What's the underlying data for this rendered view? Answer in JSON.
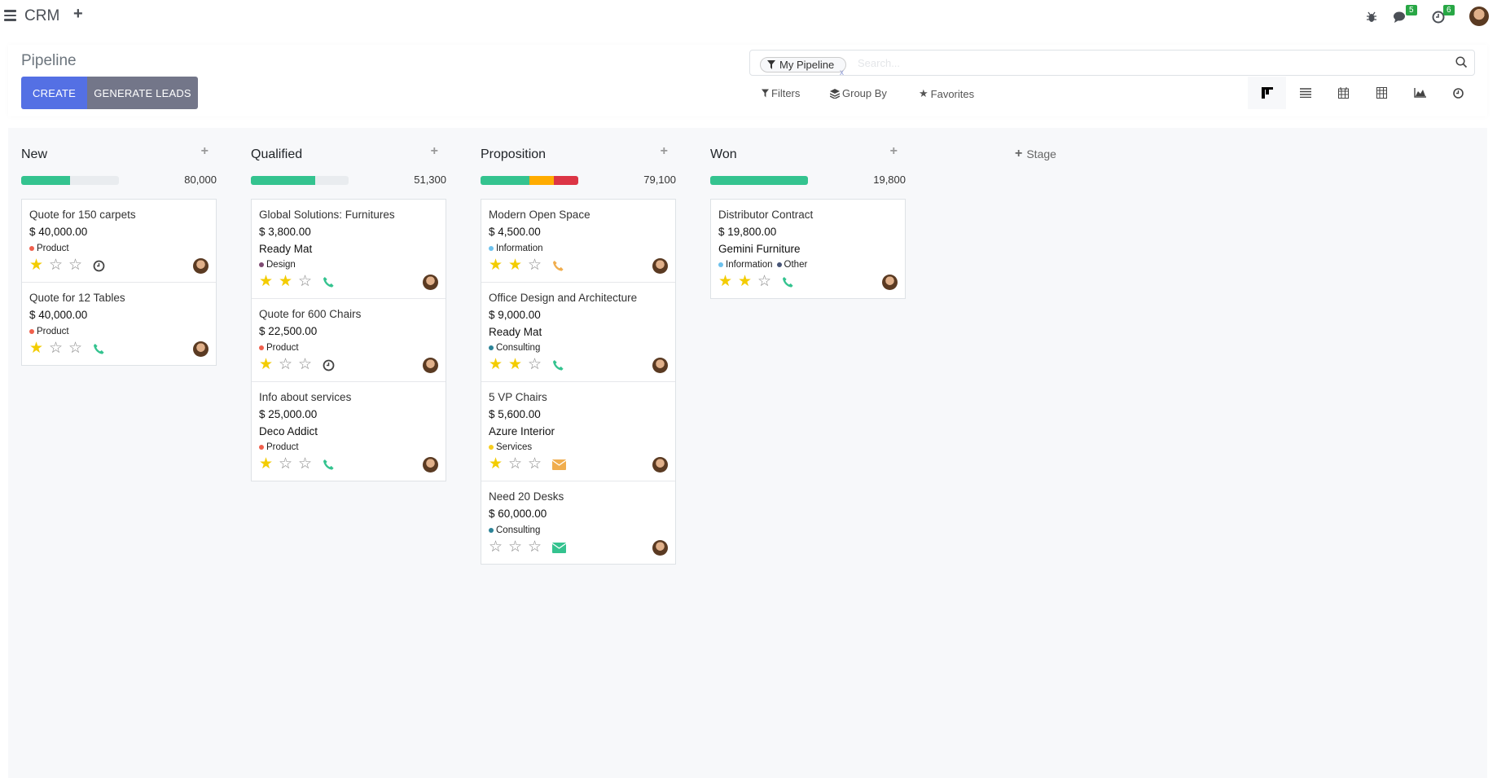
{
  "topbar": {
    "app": "CRM",
    "chat_badge": "5",
    "activity_badge": "6"
  },
  "control": {
    "title": "Pipeline",
    "create": "CREATE",
    "generate": "GENERATE LEADS",
    "facet": "My Pipeline",
    "search_placeholder": "Search...",
    "filters": "Filters",
    "group_by": "Group By",
    "favorites": "Favorites",
    "views": [
      "kanban",
      "list",
      "calendar",
      "pivot",
      "graph",
      "activity"
    ]
  },
  "colors": {
    "accent": "#5470e4",
    "green": "#34c38f",
    "orange": "#ffac00",
    "red": "#dc3545",
    "star": "#f3cc00"
  },
  "add_stage": "Stage",
  "columns": [
    {
      "title": "New",
      "total": "80,000",
      "progress": [
        {
          "color": "#34c38f",
          "pct": 50
        }
      ],
      "cards": [
        {
          "name": "Quote for 150 carpets",
          "amount": "$ 40,000.00",
          "company": "",
          "tags": [
            {
              "label": "Product",
              "color": "#f0604d"
            }
          ],
          "stars": 1,
          "activity": "clock"
        },
        {
          "name": "Quote for 12 Tables",
          "amount": "$ 40,000.00",
          "company": "",
          "tags": [
            {
              "label": "Product",
              "color": "#f0604d"
            }
          ],
          "stars": 1,
          "activity": "phone"
        }
      ]
    },
    {
      "title": "Qualified",
      "total": "51,300",
      "progress": [
        {
          "color": "#34c38f",
          "pct": 66
        }
      ],
      "cards": [
        {
          "name": "Global Solutions: Furnitures",
          "amount": "$ 3,800.00",
          "company": "Ready Mat",
          "tags": [
            {
              "label": "Design",
              "color": "#7e4a72"
            }
          ],
          "stars": 2,
          "activity": "phone"
        },
        {
          "name": "Quote for 600 Chairs",
          "amount": "$ 22,500.00",
          "company": "",
          "tags": [
            {
              "label": "Product",
              "color": "#f0604d"
            }
          ],
          "stars": 1,
          "activity": "clock"
        },
        {
          "name": "Info about services",
          "amount": "$ 25,000.00",
          "company": "Deco Addict",
          "tags": [
            {
              "label": "Product",
              "color": "#f0604d"
            }
          ],
          "stars": 1,
          "activity": "phone"
        }
      ]
    },
    {
      "title": "Proposition",
      "total": "79,100",
      "progress": [
        {
          "color": "#34c38f",
          "pct": 50
        },
        {
          "color": "#ffac00",
          "pct": 25
        },
        {
          "color": "#dc3545",
          "pct": 25
        }
      ],
      "cards": [
        {
          "name": "Modern Open Space",
          "amount": "$ 4,500.00",
          "company": "",
          "tags": [
            {
              "label": "Information",
              "color": "#6cc1ed"
            }
          ],
          "stars": 2,
          "activity": "phone-orange"
        },
        {
          "name": "Office Design and Architecture",
          "amount": "$ 9,000.00",
          "company": "Ready Mat",
          "tags": [
            {
              "label": "Consulting",
              "color": "#2c8397"
            }
          ],
          "stars": 2,
          "activity": "phone"
        },
        {
          "name": "5 VP Chairs",
          "amount": "$ 5,600.00",
          "company": "Azure Interior",
          "tags": [
            {
              "label": "Services",
              "color": "#f7cd1f"
            }
          ],
          "stars": 1,
          "activity": "mail-orange"
        },
        {
          "name": "Need 20 Desks",
          "amount": "$ 60,000.00",
          "company": "",
          "tags": [
            {
              "label": "Consulting",
              "color": "#2c8397"
            }
          ],
          "stars": 0,
          "activity": "mail"
        }
      ]
    },
    {
      "title": "Won",
      "total": "19,800",
      "progress": [
        {
          "color": "#34c38f",
          "pct": 100
        }
      ],
      "cards": [
        {
          "name": "Distributor Contract",
          "amount": "$ 19,800.00",
          "company": "Gemini Furniture",
          "tags": [
            {
              "label": "Information",
              "color": "#6cc1ed"
            },
            {
              "label": "Other",
              "color": "#475577"
            }
          ],
          "stars": 2,
          "activity": "phone"
        }
      ]
    }
  ]
}
